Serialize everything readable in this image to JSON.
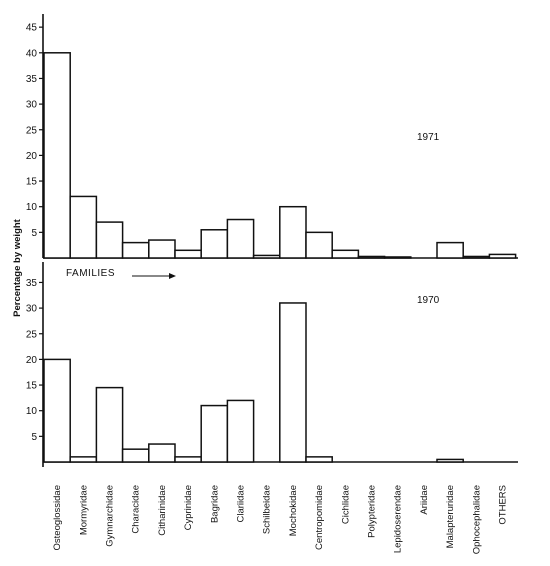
{
  "chart_data": {
    "type": "bar",
    "ylabel": "Percentage by weight",
    "families_label": "FAMILIES",
    "categories": [
      "Osteoglossidae",
      "Mormyridae",
      "Gymnarchidae",
      "Characidae",
      "Citharinidae",
      "Cyprinidae",
      "Bagridae",
      "Clariidae",
      "Schilbeidae",
      "Mochokidae",
      "Centropomidae",
      "Cichlidae",
      "Polypteridae",
      "Lepidoserendae",
      "Ariidae",
      "Malapteruridae",
      "Ophocephalidae",
      "OTHERS"
    ],
    "panels": [
      {
        "year": "1971",
        "yticks": [
          5,
          10,
          15,
          20,
          25,
          30,
          35,
          40,
          45
        ],
        "ylim": [
          0,
          45
        ],
        "values": [
          40,
          12,
          7,
          3,
          3.5,
          1.5,
          5.5,
          7.5,
          0.5,
          10,
          5,
          1.5,
          0.3,
          0.2,
          0,
          3,
          0.3,
          0.7
        ]
      },
      {
        "year": "1970",
        "yticks": [
          5,
          10,
          15,
          20,
          25,
          30,
          35
        ],
        "ylim": [
          0,
          35
        ],
        "values": [
          20,
          1,
          14.5,
          2.5,
          3.5,
          1,
          11,
          12,
          0,
          31,
          1,
          0,
          0,
          0,
          0,
          0.5,
          0,
          0
        ]
      }
    ]
  }
}
